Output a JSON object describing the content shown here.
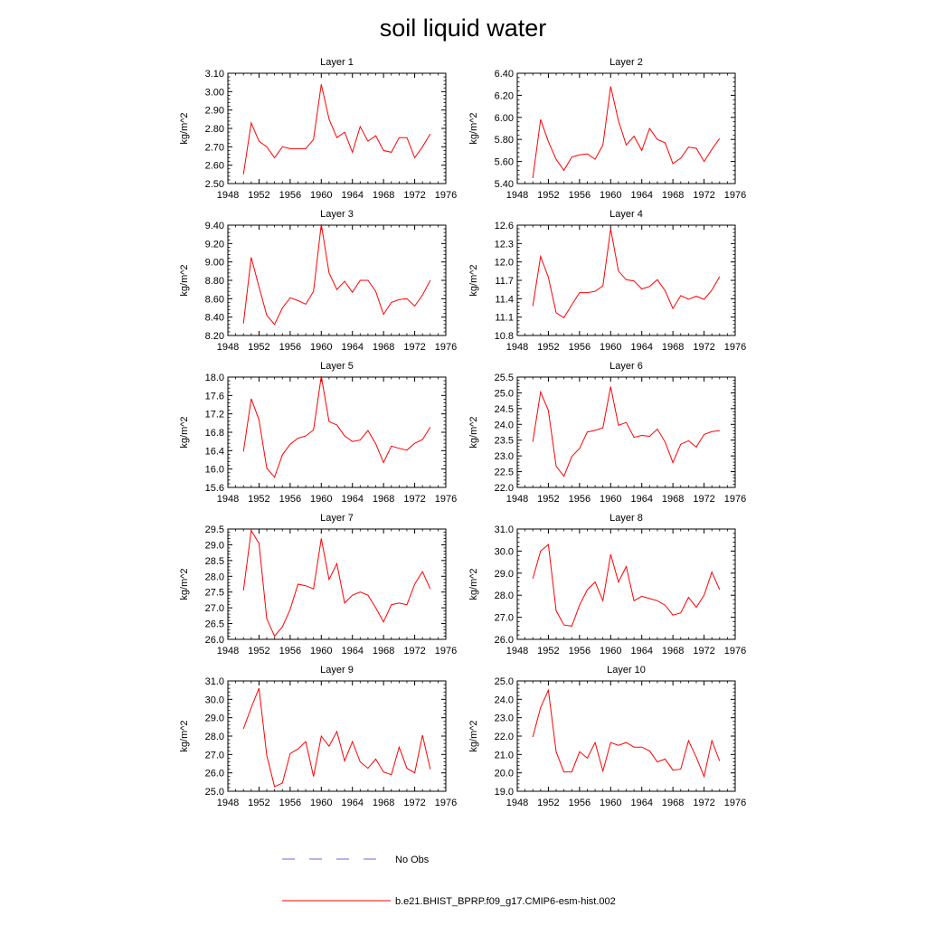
{
  "title": "soil liquid water",
  "legend": {
    "entries": [
      {
        "label": "No Obs",
        "color": "#6a6ad8",
        "dash": true
      },
      {
        "label": "b.e21.BHIST_BPRP.f09_g17.CMIP6-esm-hist.002",
        "color": "#ff0000",
        "dash": false
      }
    ]
  },
  "chart_data": [
    {
      "type": "line",
      "title": "Layer 1",
      "ylabel": "kg/m^2",
      "xlim": [
        1948,
        1976
      ],
      "xticks": [
        "1948",
        "1952",
        "1956",
        "1960",
        "1964",
        "1968",
        "1972",
        "1976"
      ],
      "ylim": [
        2.5,
        3.1
      ],
      "yticks": [
        "2.50",
        "2.60",
        "2.70",
        "2.80",
        "2.90",
        "3.00",
        "3.10"
      ],
      "x": [
        1950,
        1951,
        1952,
        1953,
        1954,
        1955,
        1956,
        1957,
        1958,
        1959,
        1960,
        1961,
        1962,
        1963,
        1964,
        1965,
        1966,
        1967,
        1968,
        1969,
        1970,
        1971,
        1972,
        1973,
        1974
      ],
      "values": [
        2.55,
        2.83,
        2.73,
        2.7,
        2.64,
        2.7,
        2.69,
        2.69,
        2.69,
        2.74,
        3.04,
        2.85,
        2.75,
        2.78,
        2.67,
        2.81,
        2.73,
        2.76,
        2.68,
        2.67,
        2.75,
        2.75,
        2.64,
        2.7,
        2.77
      ]
    },
    {
      "type": "line",
      "title": "Layer 2",
      "ylabel": "kg/m^2",
      "xlim": [
        1948,
        1976
      ],
      "xticks": [
        "1948",
        "1952",
        "1956",
        "1960",
        "1964",
        "1968",
        "1972",
        "1976"
      ],
      "ylim": [
        5.4,
        6.4
      ],
      "yticks": [
        "5.40",
        "5.60",
        "5.80",
        "6.00",
        "6.20",
        "6.40"
      ],
      "x": [
        1950,
        1951,
        1952,
        1953,
        1954,
        1955,
        1956,
        1957,
        1958,
        1959,
        1960,
        1961,
        1962,
        1963,
        1964,
        1965,
        1966,
        1967,
        1968,
        1969,
        1970,
        1971,
        1972,
        1973,
        1974
      ],
      "values": [
        5.45,
        5.98,
        5.78,
        5.62,
        5.52,
        5.64,
        5.66,
        5.67,
        5.62,
        5.75,
        6.28,
        5.97,
        5.75,
        5.83,
        5.7,
        5.9,
        5.8,
        5.77,
        5.58,
        5.63,
        5.73,
        5.72,
        5.6,
        5.71,
        5.81
      ]
    },
    {
      "type": "line",
      "title": "Layer 3",
      "ylabel": "kg/m^2",
      "xlim": [
        1948,
        1976
      ],
      "xticks": [
        "1948",
        "1952",
        "1956",
        "1960",
        "1964",
        "1968",
        "1972",
        "1976"
      ],
      "ylim": [
        8.2,
        9.4
      ],
      "yticks": [
        "8.20",
        "8.40",
        "8.60",
        "8.80",
        "9.00",
        "9.20",
        "9.40"
      ],
      "x": [
        1950,
        1951,
        1952,
        1953,
        1954,
        1955,
        1956,
        1957,
        1958,
        1959,
        1960,
        1961,
        1962,
        1963,
        1964,
        1965,
        1966,
        1967,
        1968,
        1969,
        1970,
        1971,
        1972,
        1973,
        1974
      ],
      "values": [
        8.33,
        9.05,
        8.73,
        8.42,
        8.32,
        8.5,
        8.61,
        8.58,
        8.54,
        8.68,
        9.41,
        8.88,
        8.7,
        8.79,
        8.67,
        8.8,
        8.8,
        8.68,
        8.43,
        8.56,
        8.59,
        8.6,
        8.52,
        8.64,
        8.8
      ]
    },
    {
      "type": "line",
      "title": "Layer 4",
      "ylabel": "kg/m^2",
      "xlim": [
        1948,
        1976
      ],
      "xticks": [
        "1948",
        "1952",
        "1956",
        "1960",
        "1964",
        "1968",
        "1972",
        "1976"
      ],
      "ylim": [
        10.8,
        12.6
      ],
      "yticks": [
        "10.8",
        "11.1",
        "11.4",
        "11.7",
        "12.0",
        "12.3",
        "12.6"
      ],
      "x": [
        1950,
        1951,
        1952,
        1953,
        1954,
        1955,
        1956,
        1957,
        1958,
        1959,
        1960,
        1961,
        1962,
        1963,
        1964,
        1965,
        1966,
        1967,
        1968,
        1969,
        1970,
        1971,
        1972,
        1973,
        1974
      ],
      "values": [
        11.28,
        12.09,
        11.75,
        11.17,
        11.09,
        11.3,
        11.5,
        11.5,
        11.52,
        11.61,
        12.54,
        11.85,
        11.71,
        11.69,
        11.56,
        11.6,
        11.71,
        11.53,
        11.24,
        11.45,
        11.39,
        11.44,
        11.39,
        11.54,
        11.76
      ]
    },
    {
      "type": "line",
      "title": "Layer 5",
      "ylabel": "kg/m^2",
      "xlim": [
        1948,
        1976
      ],
      "xticks": [
        "1948",
        "1952",
        "1956",
        "1960",
        "1964",
        "1968",
        "1972",
        "1976"
      ],
      "ylim": [
        15.6,
        18.0
      ],
      "yticks": [
        "15.6",
        "16.0",
        "16.4",
        "16.8",
        "17.2",
        "17.6",
        "18.0"
      ],
      "x": [
        1950,
        1951,
        1952,
        1953,
        1954,
        1955,
        1956,
        1957,
        1958,
        1959,
        1960,
        1961,
        1962,
        1963,
        1964,
        1965,
        1966,
        1967,
        1968,
        1969,
        1970,
        1971,
        1972,
        1973,
        1974
      ],
      "values": [
        16.38,
        17.53,
        17.07,
        16.02,
        15.82,
        16.31,
        16.54,
        16.67,
        16.72,
        16.85,
        18.02,
        17.03,
        16.96,
        16.72,
        16.6,
        16.63,
        16.84,
        16.55,
        16.14,
        16.5,
        16.45,
        16.41,
        16.56,
        16.64,
        16.91
      ]
    },
    {
      "type": "line",
      "title": "Layer 6",
      "ylabel": "kg/m^2",
      "xlim": [
        1948,
        1976
      ],
      "xticks": [
        "1948",
        "1952",
        "1956",
        "1960",
        "1964",
        "1968",
        "1972",
        "1976"
      ],
      "ylim": [
        22.0,
        25.5
      ],
      "yticks": [
        "22.0",
        "22.5",
        "23.0",
        "23.5",
        "24.0",
        "24.5",
        "25.0",
        "25.5"
      ],
      "x": [
        1950,
        1951,
        1952,
        1953,
        1954,
        1955,
        1956,
        1957,
        1958,
        1959,
        1960,
        1961,
        1962,
        1963,
        1964,
        1965,
        1966,
        1967,
        1968,
        1969,
        1970,
        1971,
        1972,
        1973,
        1974
      ],
      "values": [
        23.45,
        25.03,
        24.44,
        22.67,
        22.35,
        22.98,
        23.24,
        23.76,
        23.81,
        23.89,
        25.2,
        23.97,
        24.06,
        23.59,
        23.65,
        23.62,
        23.85,
        23.44,
        22.79,
        23.37,
        23.48,
        23.28,
        23.68,
        23.77,
        23.8
      ]
    },
    {
      "type": "line",
      "title": "Layer 7",
      "ylabel": "kg/m^2",
      "xlim": [
        1948,
        1976
      ],
      "xticks": [
        "1948",
        "1952",
        "1956",
        "1960",
        "1964",
        "1968",
        "1972",
        "1976"
      ],
      "ylim": [
        26.0,
        29.5
      ],
      "yticks": [
        "26.0",
        "26.5",
        "27.0",
        "27.5",
        "28.0",
        "28.5",
        "29.0",
        "29.5"
      ],
      "x": [
        1950,
        1951,
        1952,
        1953,
        1954,
        1955,
        1956,
        1957,
        1958,
        1959,
        1960,
        1961,
        1962,
        1963,
        1964,
        1965,
        1966,
        1967,
        1968,
        1969,
        1970,
        1971,
        1972,
        1973,
        1974
      ],
      "values": [
        27.55,
        29.45,
        29.05,
        26.65,
        26.1,
        26.4,
        26.95,
        27.75,
        27.7,
        27.6,
        29.2,
        27.9,
        28.4,
        27.15,
        27.4,
        27.5,
        27.4,
        27.0,
        26.55,
        27.1,
        27.15,
        27.1,
        27.75,
        28.15,
        27.6
      ]
    },
    {
      "type": "line",
      "title": "Layer 8",
      "ylabel": "kg/m^2",
      "xlim": [
        1948,
        1976
      ],
      "xticks": [
        "1948",
        "1952",
        "1956",
        "1960",
        "1964",
        "1968",
        "1972",
        "1976"
      ],
      "ylim": [
        26.0,
        31.0
      ],
      "yticks": [
        "26.0",
        "27.0",
        "28.0",
        "29.0",
        "30.0",
        "31.0"
      ],
      "x": [
        1950,
        1951,
        1952,
        1953,
        1954,
        1955,
        1956,
        1957,
        1958,
        1959,
        1960,
        1961,
        1962,
        1963,
        1964,
        1965,
        1966,
        1967,
        1968,
        1969,
        1970,
        1971,
        1972,
        1973,
        1974
      ],
      "values": [
        28.75,
        30.0,
        30.3,
        27.3,
        26.65,
        26.6,
        27.55,
        28.25,
        28.6,
        27.75,
        29.85,
        28.6,
        29.3,
        27.75,
        27.95,
        27.85,
        27.75,
        27.55,
        27.1,
        27.2,
        27.9,
        27.45,
        28.0,
        29.05,
        28.25
      ]
    },
    {
      "type": "line",
      "title": "Layer 9",
      "ylabel": "kg/m^2",
      "xlim": [
        1948,
        1976
      ],
      "xticks": [
        "1948",
        "1952",
        "1956",
        "1960",
        "1964",
        "1968",
        "1972",
        "1976"
      ],
      "ylim": [
        25.0,
        31.0
      ],
      "yticks": [
        "25.0",
        "26.0",
        "27.0",
        "28.0",
        "29.0",
        "30.0",
        "31.0"
      ],
      "x": [
        1950,
        1951,
        1952,
        1953,
        1954,
        1955,
        1956,
        1957,
        1958,
        1959,
        1960,
        1961,
        1962,
        1963,
        1964,
        1965,
        1966,
        1967,
        1968,
        1969,
        1970,
        1971,
        1972,
        1973,
        1974
      ],
      "values": [
        28.4,
        29.55,
        30.6,
        26.95,
        25.25,
        25.45,
        27.05,
        27.3,
        27.7,
        25.8,
        28.0,
        27.45,
        28.25,
        26.65,
        27.7,
        26.6,
        26.25,
        26.75,
        26.05,
        25.9,
        27.4,
        26.25,
        26.0,
        28.05,
        26.2
      ]
    },
    {
      "type": "line",
      "title": "Layer 10",
      "ylabel": "kg/m^2",
      "xlim": [
        1948,
        1976
      ],
      "xticks": [
        "1948",
        "1952",
        "1956",
        "1960",
        "1964",
        "1968",
        "1972",
        "1976"
      ],
      "ylim": [
        19.0,
        25.0
      ],
      "yticks": [
        "19.0",
        "20.0",
        "21.0",
        "22.0",
        "23.0",
        "24.0",
        "25.0"
      ],
      "x": [
        1950,
        1951,
        1952,
        1953,
        1954,
        1955,
        1956,
        1957,
        1958,
        1959,
        1960,
        1961,
        1962,
        1963,
        1964,
        1965,
        1966,
        1967,
        1968,
        1969,
        1970,
        1971,
        1972,
        1973,
        1974
      ],
      "values": [
        21.95,
        23.55,
        24.5,
        21.15,
        20.05,
        20.05,
        21.15,
        20.8,
        21.65,
        20.1,
        21.65,
        21.5,
        21.65,
        21.4,
        21.4,
        21.2,
        20.6,
        20.75,
        20.15,
        20.2,
        21.75,
        20.85,
        19.8,
        21.75,
        20.65
      ]
    }
  ]
}
